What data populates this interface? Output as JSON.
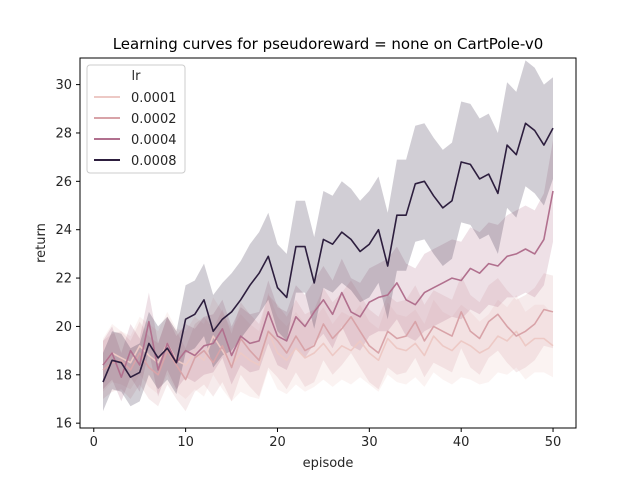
{
  "chart_data": {
    "type": "line",
    "title": "Learning curves for pseudoreward = none on CartPole-v0",
    "xlabel": "episode",
    "ylabel": "return",
    "xlim": [
      -1.5,
      52.5
    ],
    "ylim": [
      15.8,
      31.1
    ],
    "xticks": [
      0,
      10,
      20,
      30,
      40,
      50
    ],
    "yticks": [
      16,
      18,
      20,
      22,
      24,
      26,
      28,
      30
    ],
    "grid": false,
    "legend": {
      "title": "lr",
      "placement": "top-left"
    },
    "x": [
      1,
      2,
      3,
      4,
      5,
      6,
      7,
      8,
      9,
      10,
      11,
      12,
      13,
      14,
      15,
      16,
      17,
      18,
      19,
      20,
      21,
      22,
      23,
      24,
      25,
      26,
      27,
      28,
      29,
      30,
      31,
      32,
      33,
      34,
      35,
      36,
      37,
      38,
      39,
      40,
      41,
      42,
      43,
      44,
      45,
      46,
      47,
      48,
      49,
      50
    ],
    "series": [
      {
        "name": "0.0001",
        "color": "#edc9c5",
        "values": [
          18.4,
          18.9,
          18.7,
          18.5,
          19.2,
          18.8,
          18.5,
          19.3,
          18.6,
          18.4,
          18.9,
          18.6,
          19.6,
          19.0,
          18.4,
          18.9,
          18.6,
          18.4,
          19.8,
          18.9,
          18.6,
          19.1,
          18.7,
          18.9,
          19.3,
          18.8,
          19.2,
          19.0,
          19.4,
          18.9,
          18.6,
          19.5,
          19.1,
          19.0,
          19.3,
          18.8,
          19.6,
          19.2,
          19.0,
          19.4,
          19.2,
          18.9,
          19.1,
          19.6,
          19.4,
          19.8,
          19.2,
          19.5,
          19.5,
          19.2
        ],
        "ci_low": [
          17.3,
          17.7,
          17.6,
          17.4,
          18.0,
          17.5,
          17.2,
          18.0,
          17.3,
          17.0,
          17.4,
          17.1,
          18.0,
          17.4,
          16.9,
          17.3,
          17.1,
          17.0,
          18.2,
          17.4,
          17.2,
          17.6,
          17.3,
          17.5,
          17.8,
          17.5,
          17.8,
          17.6,
          17.9,
          17.6,
          17.3,
          18.0,
          17.7,
          17.6,
          17.9,
          17.5,
          18.1,
          17.8,
          17.6,
          17.9,
          17.8,
          17.6,
          17.7,
          18.1,
          18.0,
          18.3,
          17.8,
          18.1,
          18.1,
          17.9
        ],
        "ci_high": [
          19.5,
          20.1,
          19.8,
          19.6,
          20.4,
          20.1,
          19.8,
          20.6,
          19.9,
          19.8,
          20.4,
          20.1,
          21.2,
          20.6,
          19.9,
          20.5,
          20.1,
          19.8,
          21.4,
          20.4,
          20.0,
          20.6,
          20.1,
          20.3,
          20.8,
          20.1,
          20.6,
          20.4,
          20.9,
          20.2,
          19.9,
          21.0,
          20.5,
          20.4,
          20.7,
          20.1,
          21.1,
          20.6,
          20.4,
          20.9,
          20.6,
          20.2,
          20.5,
          21.1,
          20.8,
          21.3,
          20.6,
          20.9,
          20.9,
          20.5
        ]
      },
      {
        "name": "0.0002",
        "color": "#d8a3a8",
        "values": [
          18.2,
          18.5,
          18.6,
          18.2,
          18.9,
          18.3,
          18.0,
          19.0,
          18.4,
          17.8,
          18.7,
          19.0,
          18.5,
          19.2,
          18.3,
          19.5,
          19.0,
          18.6,
          19.8,
          19.4,
          18.9,
          19.6,
          19.0,
          19.2,
          20.1,
          19.5,
          19.9,
          20.4,
          19.8,
          19.2,
          18.9,
          19.8,
          19.5,
          19.6,
          20.2,
          19.4,
          20.0,
          19.8,
          19.6,
          20.6,
          19.8,
          19.5,
          20.2,
          20.5,
          20.0,
          19.6,
          19.8,
          20.1,
          20.7,
          20.6
        ],
        "ci_low": [
          17.0,
          17.3,
          17.4,
          17.0,
          17.6,
          17.0,
          16.7,
          17.6,
          17.0,
          16.5,
          17.3,
          17.6,
          17.1,
          17.7,
          16.9,
          18.0,
          17.5,
          17.1,
          18.3,
          17.9,
          17.4,
          18.1,
          17.5,
          17.7,
          18.6,
          18.0,
          18.4,
          18.9,
          18.3,
          17.7,
          17.4,
          18.3,
          18.0,
          18.1,
          18.7,
          17.9,
          18.5,
          18.3,
          18.1,
          19.1,
          18.3,
          18.0,
          18.7,
          19.0,
          18.5,
          18.1,
          18.3,
          18.6,
          19.2,
          19.1
        ],
        "ci_high": [
          19.4,
          19.7,
          19.8,
          19.4,
          20.2,
          19.6,
          19.3,
          20.4,
          19.8,
          19.1,
          20.1,
          20.4,
          19.9,
          20.7,
          19.7,
          21.0,
          20.5,
          20.1,
          21.3,
          20.9,
          20.4,
          21.1,
          20.5,
          20.7,
          21.6,
          21.0,
          21.4,
          21.9,
          21.3,
          20.7,
          20.4,
          21.3,
          21.0,
          21.1,
          21.7,
          20.9,
          21.5,
          21.3,
          21.1,
          22.1,
          21.3,
          21.0,
          21.7,
          22.0,
          21.5,
          21.1,
          21.3,
          21.6,
          22.2,
          22.1
        ]
      },
      {
        "name": "0.0004",
        "color": "#b1708e",
        "values": [
          18.4,
          18.9,
          17.9,
          19.0,
          18.4,
          20.2,
          18.2,
          19.3,
          18.5,
          19.0,
          18.8,
          19.2,
          19.3,
          19.9,
          18.8,
          19.6,
          19.3,
          19.4,
          20.6,
          19.6,
          19.4,
          20.4,
          20.0,
          20.6,
          21.1,
          20.5,
          21.4,
          20.6,
          20.4,
          21.0,
          21.2,
          21.3,
          21.8,
          21.1,
          20.9,
          21.4,
          21.6,
          21.8,
          22.0,
          21.9,
          22.4,
          22.2,
          22.6,
          22.5,
          22.9,
          23.0,
          23.2,
          23.0,
          23.6,
          25.6
        ],
        "ci_low": [
          17.4,
          17.8,
          16.9,
          17.9,
          17.3,
          19.0,
          17.1,
          18.2,
          17.4,
          17.9,
          17.7,
          18.0,
          18.1,
          18.7,
          17.6,
          18.4,
          18.1,
          18.2,
          19.3,
          18.4,
          18.2,
          19.1,
          18.7,
          19.3,
          19.7,
          19.1,
          20.0,
          19.2,
          19.0,
          19.6,
          19.8,
          19.8,
          20.3,
          19.6,
          19.4,
          19.8,
          20.0,
          20.2,
          20.4,
          20.3,
          20.7,
          20.5,
          20.9,
          20.8,
          21.2,
          21.2,
          21.4,
          21.2,
          21.7,
          23.5
        ],
        "ci_high": [
          19.4,
          20.0,
          18.9,
          20.1,
          19.5,
          21.4,
          19.3,
          20.4,
          19.6,
          20.1,
          19.9,
          20.4,
          20.5,
          21.1,
          20.0,
          20.8,
          20.5,
          20.6,
          21.9,
          20.8,
          20.6,
          21.7,
          21.3,
          21.9,
          22.5,
          21.9,
          22.8,
          22.0,
          21.8,
          22.4,
          22.6,
          22.8,
          23.3,
          22.6,
          22.4,
          23.0,
          23.2,
          23.4,
          23.6,
          23.5,
          24.1,
          23.9,
          24.3,
          24.2,
          24.6,
          24.8,
          25.0,
          24.8,
          25.5,
          27.7
        ]
      },
      {
        "name": "0.0008",
        "color": "#2d1e3e",
        "values": [
          17.7,
          18.6,
          18.5,
          17.9,
          18.1,
          19.3,
          18.7,
          19.1,
          18.5,
          20.3,
          20.5,
          21.1,
          19.8,
          20.3,
          20.6,
          21.1,
          21.7,
          22.2,
          22.9,
          21.6,
          21.2,
          23.3,
          23.3,
          21.8,
          23.6,
          23.4,
          23.9,
          23.6,
          23.1,
          23.4,
          24.0,
          22.5,
          24.6,
          24.6,
          25.9,
          26.0,
          25.4,
          24.9,
          25.2,
          26.8,
          26.7,
          26.1,
          26.3,
          25.5,
          27.5,
          27.1,
          28.4,
          28.1,
          27.5,
          28.2
        ],
        "ci_low": [
          16.5,
          17.4,
          17.3,
          16.7,
          16.9,
          18.0,
          17.4,
          17.8,
          17.2,
          18.9,
          19.1,
          19.6,
          18.3,
          18.8,
          19.0,
          19.5,
          20.0,
          20.5,
          21.1,
          19.8,
          19.4,
          21.4,
          21.4,
          19.9,
          21.6,
          21.4,
          21.8,
          21.5,
          21.0,
          21.2,
          21.8,
          20.3,
          22.3,
          22.3,
          23.5,
          23.6,
          23.0,
          22.5,
          22.8,
          24.3,
          24.2,
          23.6,
          23.8,
          23.0,
          24.9,
          24.5,
          25.8,
          25.5,
          25.0,
          26.1
        ],
        "ci_high": [
          18.9,
          19.8,
          19.7,
          19.1,
          19.3,
          20.6,
          20.0,
          20.4,
          19.8,
          21.7,
          21.9,
          22.6,
          21.3,
          21.8,
          22.2,
          22.7,
          23.4,
          23.9,
          24.7,
          23.4,
          23.0,
          25.2,
          25.2,
          23.7,
          25.6,
          25.4,
          26.0,
          25.7,
          25.2,
          25.6,
          26.2,
          24.7,
          26.9,
          26.9,
          28.3,
          28.4,
          27.8,
          27.3,
          27.6,
          29.3,
          29.2,
          28.6,
          28.8,
          28.0,
          30.1,
          29.7,
          31.0,
          30.7,
          30.0,
          30.3
        ]
      }
    ]
  }
}
